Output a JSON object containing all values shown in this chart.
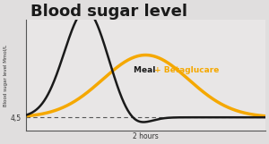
{
  "title": "Blood sugar level",
  "ylabel": "Blood sugar level Mmol/L",
  "xlabel": "2 hours",
  "baseline_label": "4,5",
  "baseline_value": 4.5,
  "bg_color": "#e0dede",
  "plot_bg_color": "#e8e6e6",
  "meal_color": "#1a1a1a",
  "betaglucare_color": "#f5a800",
  "meal_label": "Meal",
  "betaglucare_label": "Meal + Betaglucare",
  "meal_label_color": "#1a1a1a",
  "betaglucare_label_color": "#f5a800",
  "title_fontsize": 13,
  "label_fontsize": 5.5,
  "annotation_fontsize": 6.5,
  "xlim": [
    0,
    10
  ],
  "ylim": [
    3.8,
    9.5
  ]
}
